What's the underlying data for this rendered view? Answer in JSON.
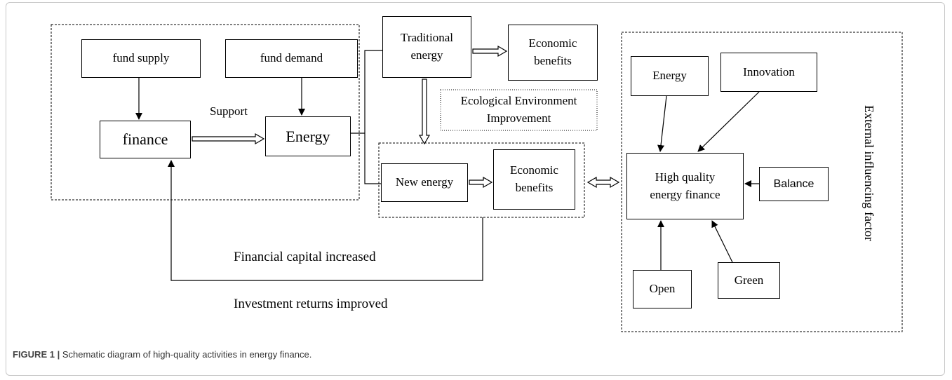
{
  "nodes": [
    {
      "label": "fund supply"
    },
    {
      "label": "fund demand"
    },
    {
      "label": "finance"
    },
    {
      "label": "Energy"
    },
    {
      "label": "Traditional energy"
    },
    {
      "label": "Economic benefits"
    },
    {
      "label": "Ecological Environment Improvement"
    },
    {
      "label": "New energy"
    },
    {
      "label": "Economic benefits"
    },
    {
      "label": "Energy"
    },
    {
      "label": "Innovation"
    },
    {
      "label": "High quality energy finance"
    },
    {
      "label": "Balance"
    },
    {
      "label": "Open"
    },
    {
      "label": "Green"
    }
  ],
  "labels": {
    "support": "Support",
    "capital": "Financial capital increased",
    "returns": "Investment returns improved",
    "external": "External influencing factor"
  },
  "caption": {
    "prefix": "FIGURE 1 |",
    "text": "Schematic diagram of high-quality activities in energy finance."
  }
}
